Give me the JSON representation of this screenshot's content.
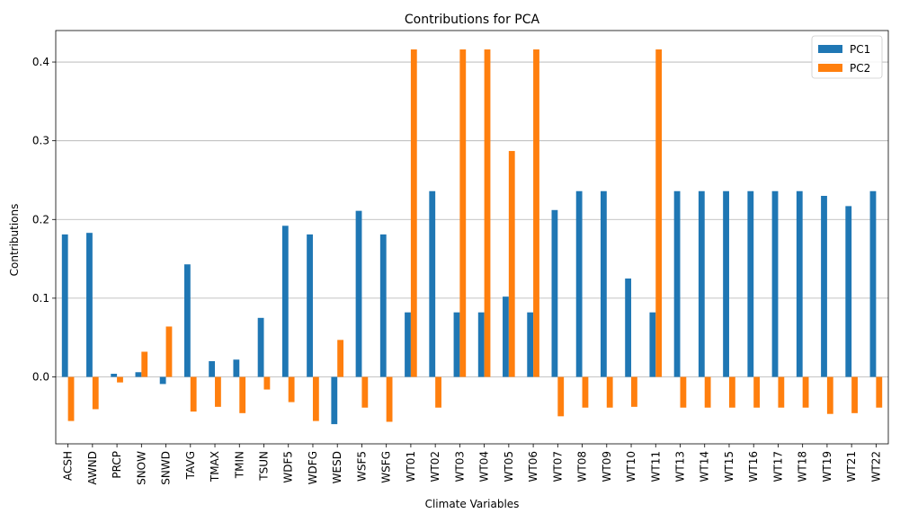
{
  "chart_data": {
    "type": "bar",
    "title": "Contributions for PCA",
    "xlabel": "Climate Variables",
    "ylabel": "Contributions",
    "ylim": [
      -0.085,
      0.44
    ],
    "yticks": [
      0.0,
      0.1,
      0.2,
      0.3,
      0.4
    ],
    "ytick_labels": [
      "0.0",
      "0.1",
      "0.2",
      "0.3",
      "0.4"
    ],
    "grid": "horizontal",
    "legend_position": "top-right",
    "categories": [
      "ACSH",
      "AWND",
      "PRCP",
      "SNOW",
      "SNWD",
      "TAVG",
      "TMAX",
      "TMIN",
      "TSUN",
      "WDF5",
      "WDFG",
      "WESD",
      "WSF5",
      "WSFG",
      "WT01",
      "WT02",
      "WT03",
      "WT04",
      "WT05",
      "WT06",
      "WT07",
      "WT08",
      "WT09",
      "WT10",
      "WT11",
      "WT13",
      "WT14",
      "WT15",
      "WT16",
      "WT17",
      "WT18",
      "WT19",
      "WT21",
      "WT22"
    ],
    "series": [
      {
        "name": "PC1",
        "color": "#1f77b4",
        "values": [
          0.181,
          0.183,
          0.004,
          0.006,
          -0.009,
          0.143,
          0.02,
          0.022,
          0.075,
          0.192,
          0.181,
          -0.06,
          0.211,
          0.181,
          0.082,
          0.236,
          0.082,
          0.082,
          0.102,
          0.082,
          0.212,
          0.236,
          0.236,
          0.125,
          0.082,
          0.236,
          0.236,
          0.236,
          0.236,
          0.236,
          0.236,
          0.23,
          0.217,
          0.236
        ]
      },
      {
        "name": "PC2",
        "color": "#ff7f0e",
        "values": [
          -0.056,
          -0.041,
          -0.007,
          0.032,
          0.064,
          -0.044,
          -0.038,
          -0.046,
          -0.016,
          -0.032,
          -0.056,
          0.047,
          -0.039,
          -0.057,
          0.416,
          -0.039,
          0.416,
          0.416,
          0.287,
          0.416,
          -0.05,
          -0.039,
          -0.039,
          -0.038,
          0.416,
          -0.039,
          -0.039,
          -0.039,
          -0.039,
          -0.039,
          -0.039,
          -0.047,
          -0.046,
          -0.039
        ]
      }
    ]
  }
}
